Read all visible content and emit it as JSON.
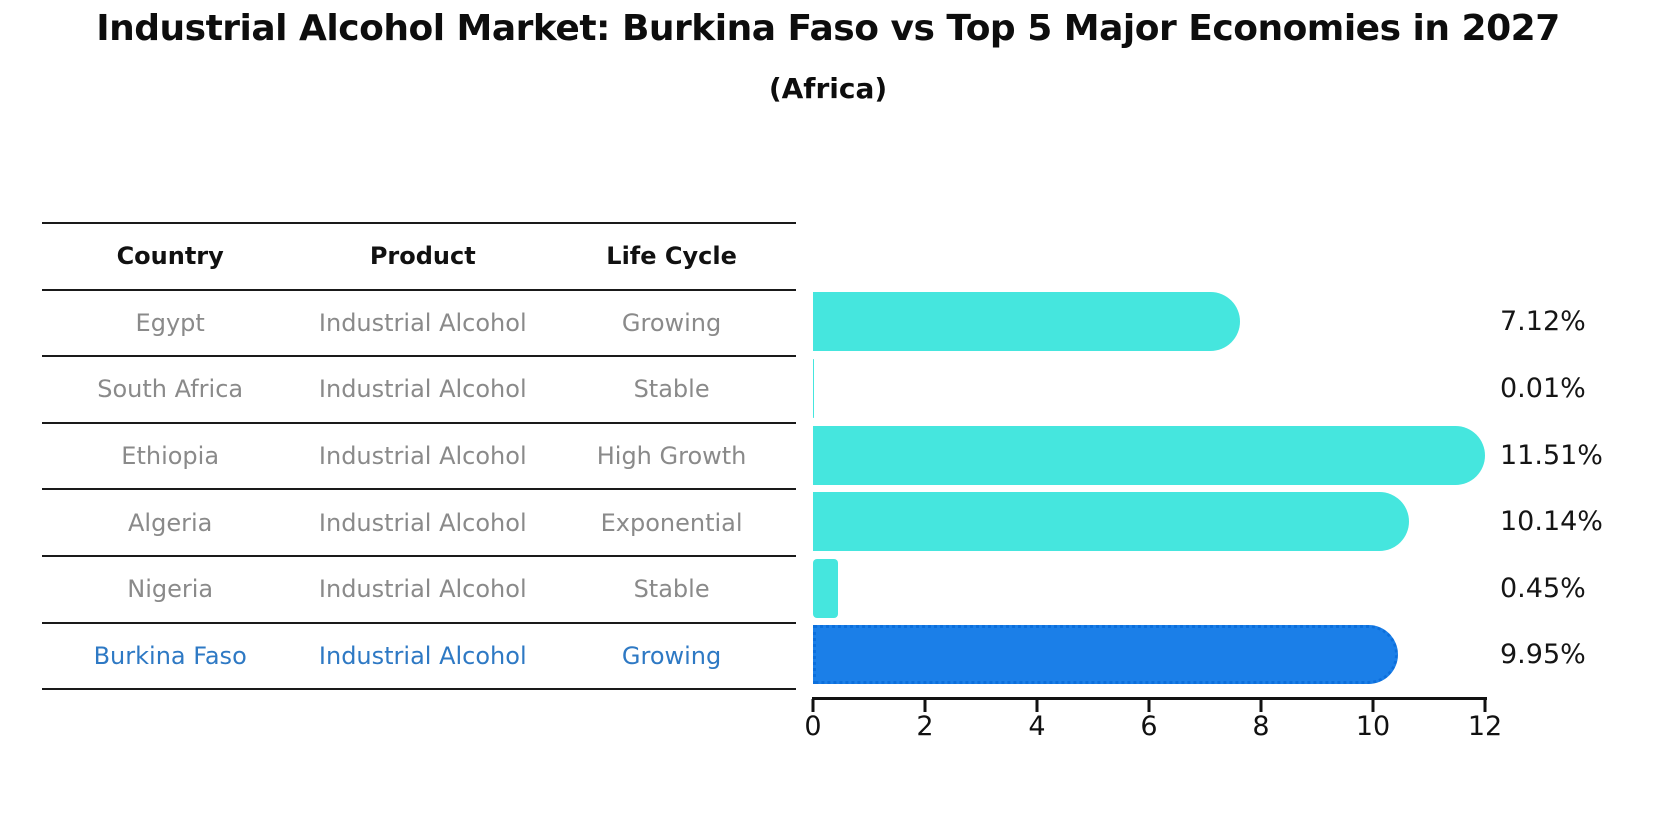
{
  "title": "Industrial Alcohol Market: Burkina Faso vs Top 5 Major Economies in 2027",
  "subtitle": "(Africa)",
  "table": {
    "headers": [
      "Country",
      "Product",
      "Life Cycle"
    ],
    "rows": [
      {
        "country": "Egypt",
        "product": "Industrial Alcohol",
        "life_cycle": "Growing"
      },
      {
        "country": "South Africa",
        "product": "Industrial Alcohol",
        "life_cycle": "Stable"
      },
      {
        "country": "Ethiopia",
        "product": "Industrial Alcohol",
        "life_cycle": "High Growth"
      },
      {
        "country": "Algeria",
        "product": "Industrial Alcohol",
        "life_cycle": "Exponential"
      },
      {
        "country": "Nigeria",
        "product": "Industrial Alcohol",
        "life_cycle": "Stable"
      },
      {
        "country": "Burkina Faso",
        "product": "Industrial Alcohol",
        "life_cycle": "Growing"
      }
    ],
    "highlight_row_index": 5
  },
  "chart_data": {
    "type": "bar",
    "orientation": "horizontal",
    "title": "Industrial Alcohol Market: Burkina Faso vs Top 5 Major Economies in 2027",
    "subtitle": "(Africa)",
    "categories": [
      "Egypt",
      "South Africa",
      "Ethiopia",
      "Algeria",
      "Nigeria",
      "Burkina Faso"
    ],
    "values": [
      7.12,
      0.01,
      11.51,
      10.14,
      0.45,
      9.95
    ],
    "value_labels": [
      "7.12%",
      "0.01%",
      "11.51%",
      "10.14%",
      "0.45%",
      "9.95%"
    ],
    "xlim": [
      0,
      12
    ],
    "xticks": [
      "0",
      "2",
      "4",
      "6",
      "8",
      "10",
      "12"
    ],
    "grid": false,
    "legend": false,
    "highlight_index": 5,
    "bar_color": "#45E6DE",
    "highlight_bar_color": "#1B7FE8",
    "highlight_bar_edge_color": "#0C6FDC",
    "highlight_text_color": "#2E79C4",
    "axis_color": "#111111",
    "label_color": "#151515"
  }
}
